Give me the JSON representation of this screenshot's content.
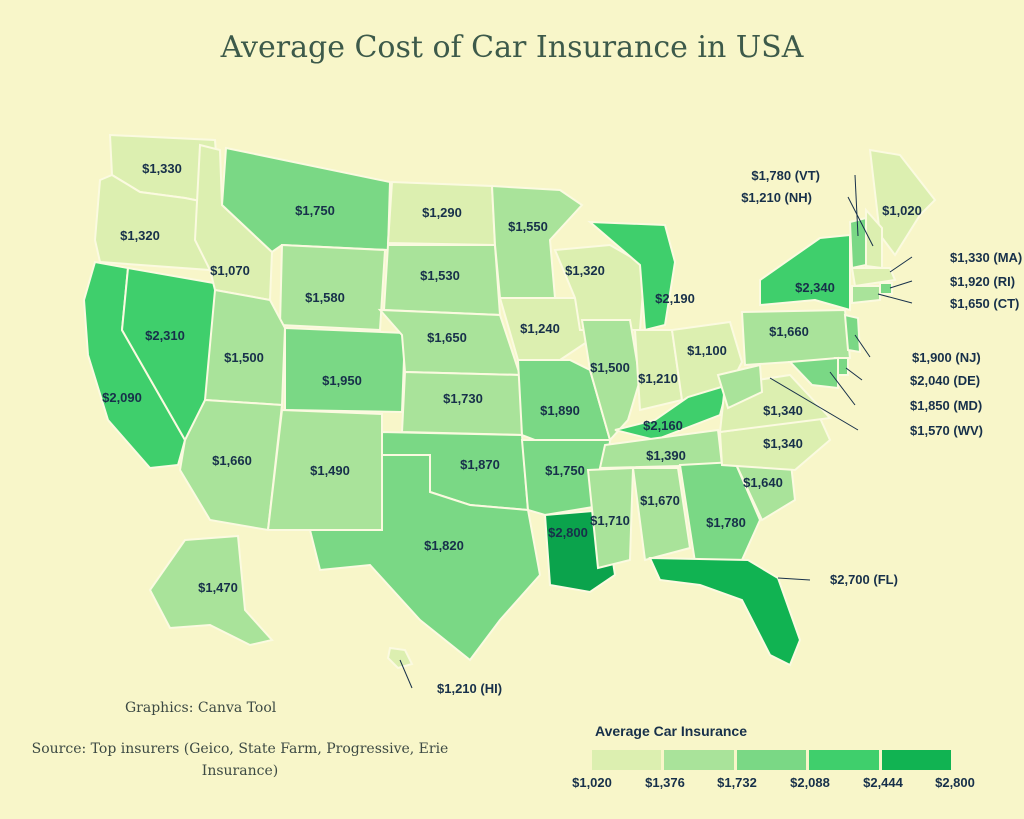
{
  "title": "Average Cost of Car Insurance in USA",
  "credit": "Graphics:  Canva Tool",
  "source": "Source: Top insurers (Geico, State Farm, Progressive, Erie Insurance)",
  "legend": {
    "title": "Average Car Insurance",
    "colors": [
      "#dcefb0",
      "#a9e39a",
      "#86dc88",
      "#4fd373",
      "#1fc45a",
      "#0ba34c"
    ],
    "ticks": [
      "$1,020",
      "$1,376",
      "$1,732",
      "$2,088",
      "$2,444",
      "$2,800"
    ]
  },
  "states": [
    {
      "id": "WA",
      "label": "$1,330",
      "value": 1330
    },
    {
      "id": "OR",
      "label": "$1,320",
      "value": 1320
    },
    {
      "id": "CA",
      "label": "$2,090",
      "value": 2090
    },
    {
      "id": "NV",
      "label": "$2,310",
      "value": 2310
    },
    {
      "id": "ID",
      "label": "$1,070",
      "value": 1070
    },
    {
      "id": "MT",
      "label": "$1,750",
      "value": 1750
    },
    {
      "id": "WY",
      "label": "$1,580",
      "value": 1580
    },
    {
      "id": "UT",
      "label": "$1,500",
      "value": 1500
    },
    {
      "id": "AZ",
      "label": "$1,660",
      "value": 1660
    },
    {
      "id": "CO",
      "label": "$1,950",
      "value": 1950
    },
    {
      "id": "NM",
      "label": "$1,490",
      "value": 1490
    },
    {
      "id": "ND",
      "label": "$1,290",
      "value": 1290
    },
    {
      "id": "SD",
      "label": "$1,530",
      "value": 1530
    },
    {
      "id": "NE",
      "label": "$1,650",
      "value": 1650
    },
    {
      "id": "KS",
      "label": "$1,730",
      "value": 1730
    },
    {
      "id": "OK",
      "label": "$1,870",
      "value": 1870
    },
    {
      "id": "TX",
      "label": "$1,820",
      "value": 1820
    },
    {
      "id": "MN",
      "label": "$1,550",
      "value": 1550
    },
    {
      "id": "IA",
      "label": "$1,240",
      "value": 1240
    },
    {
      "id": "MO",
      "label": "$1,890",
      "value": 1890
    },
    {
      "id": "AR",
      "label": "$1,750",
      "value": 1750
    },
    {
      "id": "LA",
      "label": "$2,800",
      "value": 2800
    },
    {
      "id": "WI",
      "label": "$1,320",
      "value": 1320
    },
    {
      "id": "IL",
      "label": "$1,500",
      "value": 1500
    },
    {
      "id": "MI",
      "label": "$2,190",
      "value": 2190
    },
    {
      "id": "IN",
      "label": "$1,210",
      "value": 1210
    },
    {
      "id": "OH",
      "label": "$1,100",
      "value": 1100
    },
    {
      "id": "KY",
      "label": "$2,160",
      "value": 2160
    },
    {
      "id": "TN",
      "label": "$1,390",
      "value": 1390
    },
    {
      "id": "MS",
      "label": "$1,710",
      "value": 1710
    },
    {
      "id": "AL",
      "label": "$1,670",
      "value": 1670
    },
    {
      "id": "GA",
      "label": "$1,780",
      "value": 1780
    },
    {
      "id": "FL",
      "label": "$2,700 (FL)",
      "value": 2700
    },
    {
      "id": "SC",
      "label": "$1,640",
      "value": 1640
    },
    {
      "id": "NC",
      "label": "$1,340",
      "value": 1340
    },
    {
      "id": "VA",
      "label": "$1,340",
      "value": 1340
    },
    {
      "id": "WV",
      "label": "$1,570 (WV)",
      "value": 1570
    },
    {
      "id": "PA",
      "label": "$1,660",
      "value": 1660
    },
    {
      "id": "NY",
      "label": "$2,340",
      "value": 2340
    },
    {
      "id": "ME",
      "label": "$1,020",
      "value": 1020
    },
    {
      "id": "VT",
      "label": "$1,780 (VT)",
      "value": 1780
    },
    {
      "id": "NH",
      "label": "$1,210 (NH)",
      "value": 1210
    },
    {
      "id": "MA",
      "label": "$1,330 (MA)",
      "value": 1330
    },
    {
      "id": "RI",
      "label": "$1,920 (RI)",
      "value": 1920
    },
    {
      "id": "CT",
      "label": "$1,650 (CT)",
      "value": 1650
    },
    {
      "id": "NJ",
      "label": "$1,900 (NJ)",
      "value": 1900
    },
    {
      "id": "DE",
      "label": "$2,040 (DE)",
      "value": 2040
    },
    {
      "id": "MD",
      "label": "$1,850 (MD)",
      "value": 1850
    },
    {
      "id": "AK",
      "label": "$1,470",
      "value": 1470
    },
    {
      "id": "HI",
      "label": "$1,210 (HI)",
      "value": 1210
    }
  ]
}
